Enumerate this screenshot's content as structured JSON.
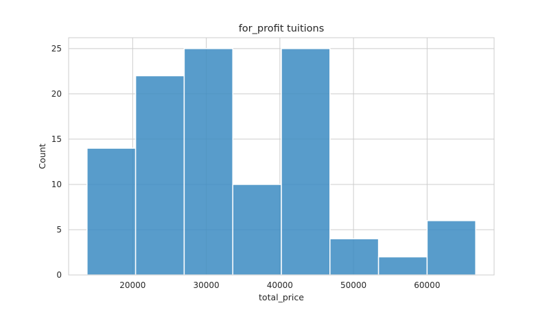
{
  "chart_data": {
    "type": "bar",
    "title": "for_profit tuitions",
    "xlabel": "total_price",
    "ylabel": "Count",
    "bins": [
      {
        "x0": 13800,
        "x1": 20400,
        "count": 14
      },
      {
        "x0": 20400,
        "x1": 27000,
        "count": 22
      },
      {
        "x0": 27000,
        "x1": 33600,
        "count": 25
      },
      {
        "x0": 33600,
        "x1": 40200,
        "count": 10
      },
      {
        "x0": 40200,
        "x1": 46800,
        "count": 25
      },
      {
        "x0": 46800,
        "x1": 53400,
        "count": 4
      },
      {
        "x0": 53400,
        "x1": 60000,
        "count": 2
      },
      {
        "x0": 60000,
        "x1": 66600,
        "count": 6
      }
    ],
    "xlim": [
      11300,
      69100
    ],
    "ylim": [
      0,
      26.2
    ],
    "xticks": [
      20000,
      30000,
      40000,
      50000,
      60000
    ],
    "xtick_labels": [
      "20000",
      "30000",
      "40000",
      "50000",
      "60000"
    ],
    "yticks": [
      0,
      5,
      10,
      15,
      20,
      25
    ],
    "ytick_labels": [
      "0",
      "5",
      "10",
      "15",
      "20",
      "25"
    ],
    "grid": true,
    "bar_color": "#3b8bc2",
    "grid_color": "#cccccc"
  }
}
